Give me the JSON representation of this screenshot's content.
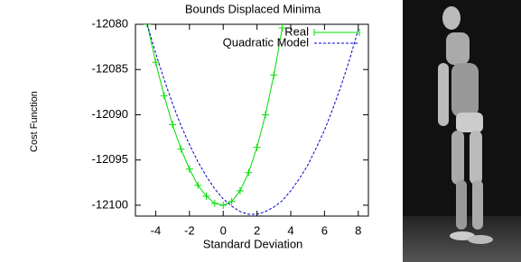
{
  "chart_data": {
    "type": "line",
    "title": "Bounds Displaced Minima",
    "x_label": "Standard Deviation",
    "y_label": "Cost Function",
    "xlim": [
      -5.2,
      8.6
    ],
    "ylim": [
      -12101.2,
      -12080
    ],
    "xticks": [
      -4,
      -2,
      0,
      2,
      4,
      6,
      8
    ],
    "yticks": [
      -12080,
      -12085,
      -12090,
      -12095,
      -12100
    ],
    "legend": "top-right",
    "series": [
      {
        "name": "Real",
        "color": "#00dd00",
        "style": "linespoints",
        "x": [
          -4.5,
          -4,
          -3.5,
          -3,
          -2.5,
          -2,
          -1.5,
          -1,
          -0.5,
          0,
          0.5,
          1,
          1.5,
          2,
          2.5,
          3,
          3.5
        ],
        "values": [
          -12080.0,
          -12084.2,
          -12087.9,
          -12091.1,
          -12093.8,
          -12096.0,
          -12097.8,
          -12099.0,
          -12099.8,
          -12100,
          -12099.6,
          -12098.4,
          -12096.4,
          -12093.6,
          -12090.0,
          -12085.6,
          -12080.4
        ]
      },
      {
        "name": "Quadratic Model",
        "color": "#0000cc",
        "style": "dashed",
        "x": [
          -4.5,
          -4,
          -3.5,
          -3,
          -2.5,
          -2,
          -1.5,
          -1,
          -0.5,
          0,
          0.5,
          1,
          1.5,
          2,
          2.5,
          3,
          3.5,
          4,
          4.5,
          5,
          5.5,
          6,
          6.5,
          7,
          7.5,
          8
        ],
        "values": [
          -12080.0,
          -12083.2,
          -12086.1,
          -12088.8,
          -12091.2,
          -12093.3,
          -12095.2,
          -12096.8,
          -12098.2,
          -12099.3,
          -12100.1,
          -12100.7,
          -12101.0,
          -12101.0,
          -12100.7,
          -12100.2,
          -12099.5,
          -12098.4,
          -12097.1,
          -12095.6,
          -12093.7,
          -12091.7,
          -12089.3,
          -12086.7,
          -12083.8,
          -12080.6
        ]
      }
    ]
  }
}
